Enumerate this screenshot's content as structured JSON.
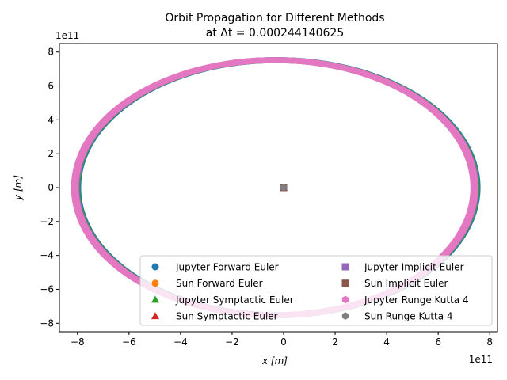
{
  "chart_data": {
    "type": "scatter",
    "title": "Orbit Propagation for Different Methods",
    "subtitle": "at Δt = 0.000244140625",
    "xlabel": "x [m]",
    "ylabel": "y [m]",
    "x_offset_label": "1e11",
    "y_offset_label": "1e11",
    "xlim": [
      -8.7,
      8.3
    ],
    "ylim": [
      -8.5,
      8.5
    ],
    "xticks": [
      -8,
      -6,
      -4,
      -2,
      0,
      2,
      4,
      6,
      8
    ],
    "yticks": [
      -8,
      -6,
      -4,
      -2,
      0,
      2,
      4,
      6,
      8
    ],
    "xtick_labels": [
      "−8",
      "−6",
      "−4",
      "−2",
      "0",
      "2",
      "4",
      "6",
      "8"
    ],
    "ytick_labels": [
      "−8",
      "−6",
      "−4",
      "−2",
      "0",
      "2",
      "4",
      "6",
      "8"
    ],
    "grid": false,
    "legend_position": "lower-right",
    "legend_columns": 2,
    "orbit": {
      "center_x": -0.35,
      "center_y": 0.0,
      "outer_semi_x": 7.9,
      "outer_semi_y": 7.7,
      "inner_semi_x": 7.6,
      "inner_semi_y": 7.35,
      "units": "1e11 m"
    },
    "series": [
      {
        "name": "Jupyter Forward Euler",
        "color": "#1f77b4",
        "marker": "circle",
        "kind": "orbit"
      },
      {
        "name": "Sun Forward Euler",
        "color": "#ff7f0e",
        "marker": "circle",
        "kind": "sun"
      },
      {
        "name": "Jupyter Symptactic Euler",
        "color": "#2ca02c",
        "marker": "triangle",
        "kind": "orbit"
      },
      {
        "name": "Sun Symptactic Euler",
        "color": "#d62728",
        "marker": "triangle",
        "kind": "sun"
      },
      {
        "name": "Jupyter Implicit Euler",
        "color": "#9467bd",
        "marker": "square",
        "kind": "orbit"
      },
      {
        "name": "Sun Implicit Euler",
        "color": "#8c564b",
        "marker": "square",
        "kind": "sun"
      },
      {
        "name": "Jupyter Runge Kutta 4",
        "color": "#e377c2",
        "marker": "hexagon",
        "kind": "orbit"
      },
      {
        "name": "Sun Runge Kutta 4",
        "color": "#7f7f7f",
        "marker": "hexagon",
        "kind": "sun"
      }
    ],
    "sun_position": [
      0.0,
      0.0
    ]
  }
}
